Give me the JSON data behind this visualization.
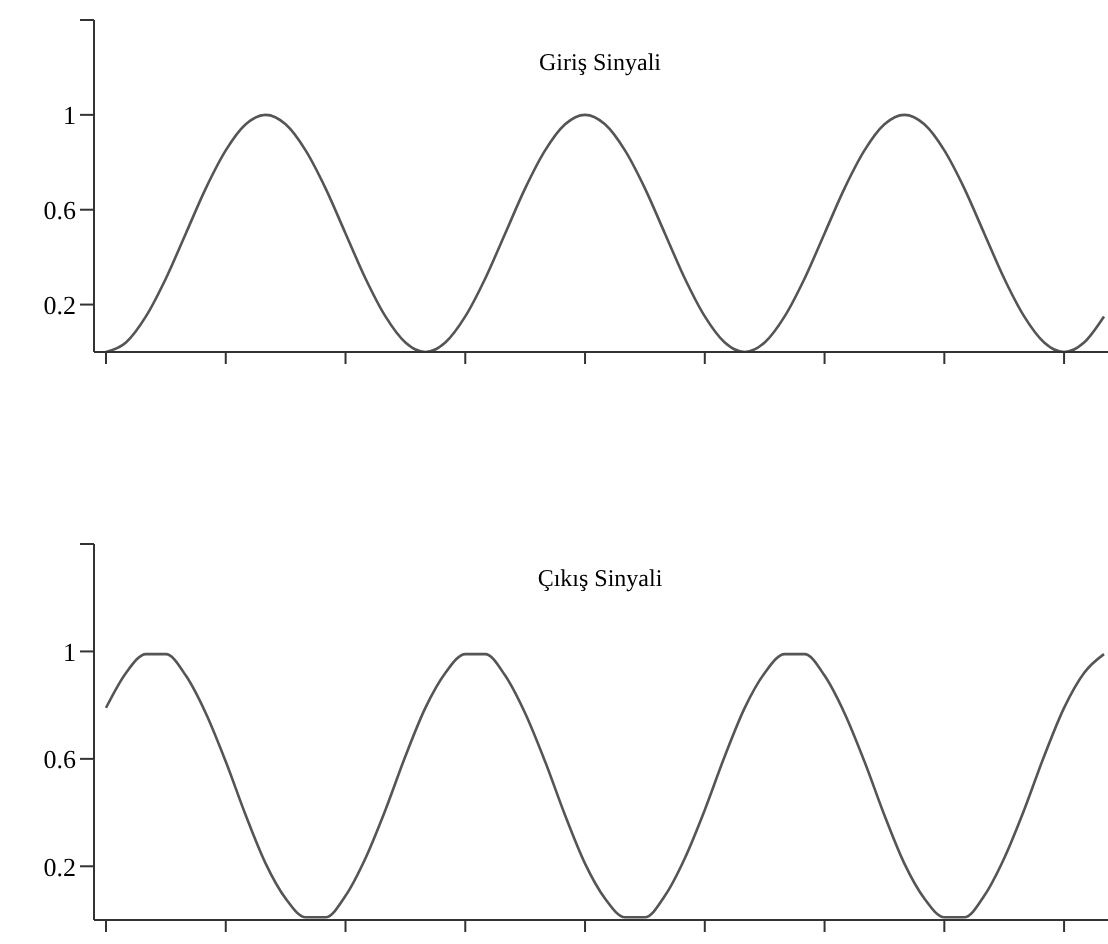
{
  "chart_data": [
    {
      "type": "line",
      "title": "Giriş Sinyali",
      "categories": [
        null,
        null,
        null,
        null,
        null,
        null,
        null,
        null,
        null,
        null,
        null,
        null,
        null,
        null,
        null,
        null,
        null,
        null,
        null,
        null,
        null,
        null,
        null,
        null,
        null,
        null,
        null,
        null,
        null,
        null,
        null,
        null,
        null,
        null,
        null,
        null,
        null,
        null,
        null,
        null,
        null,
        null,
        null,
        null,
        null,
        null,
        null,
        null,
        null,
        null,
        null
      ],
      "series": [
        {
          "color": "#555555",
          "values": [
            0,
            0.04,
            0.15,
            0.31,
            0.5,
            0.69,
            0.85,
            0.96,
            1,
            0.96,
            0.85,
            0.69,
            0.5,
            0.31,
            0.15,
            0.04,
            0,
            0.04,
            0.15,
            0.31,
            0.5,
            0.69,
            0.85,
            0.96,
            1,
            0.96,
            0.85,
            0.69,
            0.5,
            0.31,
            0.15,
            0.04,
            0,
            0.04,
            0.15,
            0.31,
            0.5,
            0.69,
            0.85,
            0.96,
            1,
            0.96,
            0.85,
            0.69,
            0.5,
            0.31,
            0.15,
            0.04,
            0,
            0.04,
            0.15
          ]
        }
      ],
      "ylim": [
        0,
        1.4
      ],
      "yticks": [
        0.2,
        0.6,
        1,
        {
          "value": 1.4,
          "label": null
        }
      ],
      "tick_labels": "y",
      "grid": false,
      "legend": false,
      "marker": "none",
      "line_style": "solid"
    },
    {
      "type": "line",
      "title": "Çıkış Sinyali",
      "categories": [
        null,
        null,
        null,
        null,
        null,
        null,
        null,
        null,
        null,
        null,
        null,
        null,
        null,
        null,
        null,
        null,
        null,
        null,
        null,
        null,
        null,
        null,
        null,
        null,
        null,
        null,
        null,
        null,
        null,
        null,
        null,
        null,
        null,
        null,
        null,
        null,
        null,
        null,
        null,
        null,
        null,
        null,
        null,
        null,
        null,
        null,
        null,
        null,
        null,
        null,
        null
      ],
      "series": [
        {
          "color": "#555555",
          "values": [
            0.79,
            0.92,
            0.99,
            0.99,
            0.91,
            0.77,
            0.59,
            0.39,
            0.21,
            0.08,
            0.01,
            0.01,
            0.09,
            0.23,
            0.41,
            0.61,
            0.79,
            0.92,
            0.99,
            0.99,
            0.91,
            0.77,
            0.59,
            0.39,
            0.21,
            0.08,
            0.01,
            0.01,
            0.09,
            0.23,
            0.41,
            0.61,
            0.79,
            0.92,
            0.99,
            0.99,
            0.91,
            0.77,
            0.59,
            0.39,
            0.21,
            0.08,
            0.01,
            0.01,
            0.09,
            0.23,
            0.41,
            0.61,
            0.79,
            0.92,
            0.99
          ]
        }
      ],
      "ylim": [
        0,
        1.4
      ],
      "yticks": [
        0.2,
        0.6,
        1,
        {
          "value": 1.4,
          "label": null
        }
      ],
      "tick_labels": "y",
      "grid": false,
      "legend": false,
      "marker": "none",
      "line_style": "solid"
    }
  ]
}
